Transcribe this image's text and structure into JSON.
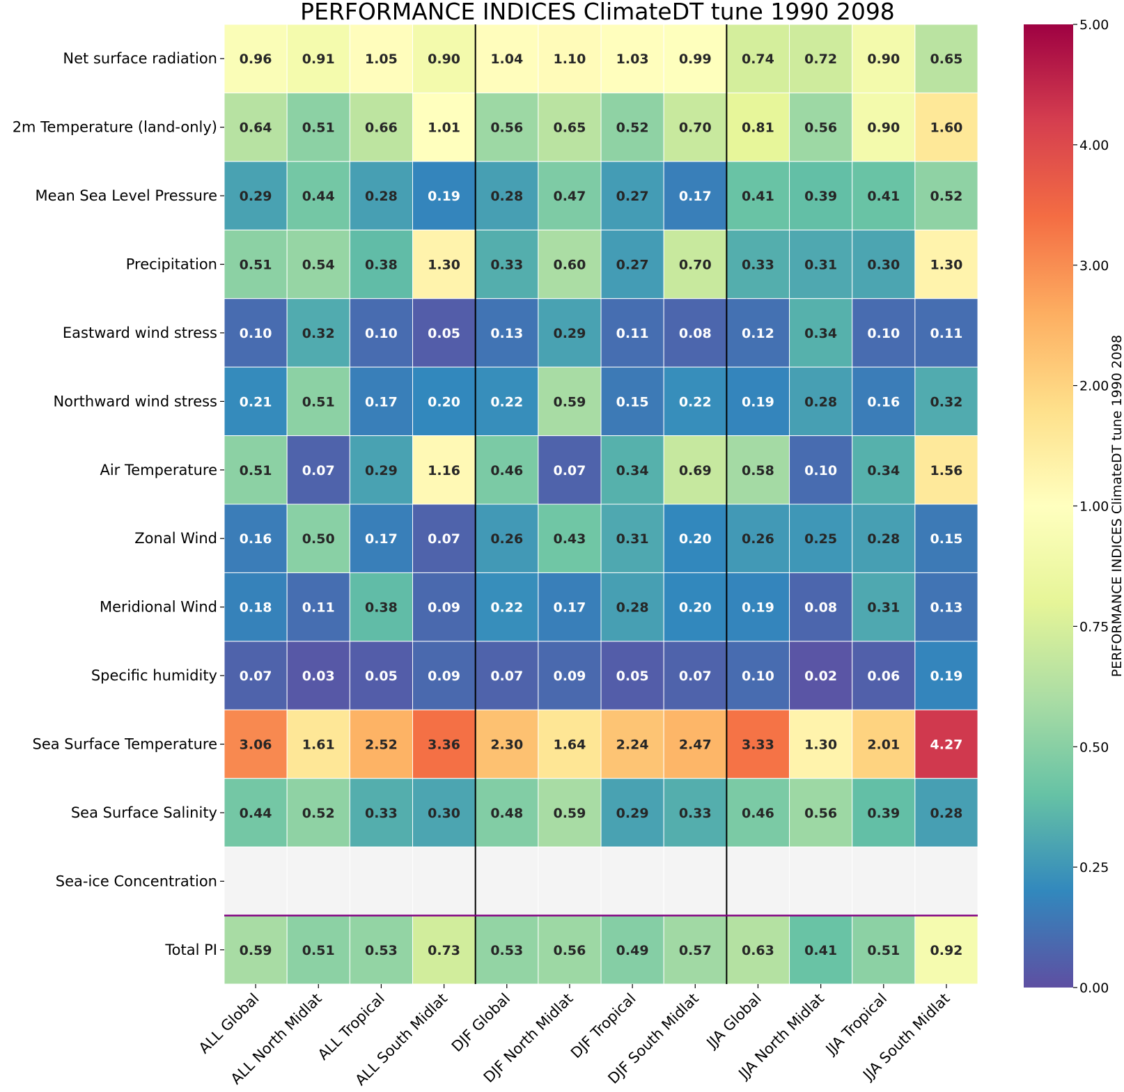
{
  "chart_data": {
    "type": "heatmap",
    "title": "PERFORMANCE INDICES ClimateDT tune 1990 2098",
    "rows": [
      "Net surface radiation",
      "2m Temperature (land-only)",
      "Mean Sea Level Pressure",
      "Precipitation",
      "Eastward wind stress",
      "Northward wind stress",
      "Air Temperature",
      "Zonal Wind",
      "Meridional Wind",
      "Specific humidity",
      "Sea Surface Temperature",
      "Sea Surface Salinity",
      "Sea-ice Concentration",
      "Total PI"
    ],
    "columns": [
      "ALL Global",
      "ALL North Midlat",
      "ALL Tropical",
      "ALL South Midlat",
      "DJF Global",
      "DJF North Midlat",
      "DJF Tropical",
      "DJF South Midlat",
      "JJA Global",
      "JJA North Midlat",
      "JJA Tropical",
      "JJA South Midlat"
    ],
    "values": [
      [
        "0.96",
        "0.91",
        "1.05",
        "0.90",
        "1.04",
        "1.10",
        "1.03",
        "0.99",
        "0.74",
        "0.72",
        "0.90",
        "0.65"
      ],
      [
        "0.64",
        "0.51",
        "0.66",
        "1.01",
        "0.56",
        "0.65",
        "0.52",
        "0.70",
        "0.81",
        "0.56",
        "0.90",
        "1.60"
      ],
      [
        "0.29",
        "0.44",
        "0.28",
        "0.19",
        "0.28",
        "0.47",
        "0.27",
        "0.17",
        "0.41",
        "0.39",
        "0.41",
        "0.52"
      ],
      [
        "0.51",
        "0.54",
        "0.38",
        "1.30",
        "0.33",
        "0.60",
        "0.27",
        "0.70",
        "0.33",
        "0.31",
        "0.30",
        "1.30"
      ],
      [
        "0.10",
        "0.32",
        "0.10",
        "0.05",
        "0.13",
        "0.29",
        "0.11",
        "0.08",
        "0.12",
        "0.34",
        "0.10",
        "0.11"
      ],
      [
        "0.21",
        "0.51",
        "0.17",
        "0.20",
        "0.22",
        "0.59",
        "0.15",
        "0.22",
        "0.19",
        "0.28",
        "0.16",
        "0.32"
      ],
      [
        "0.51",
        "0.07",
        "0.29",
        "1.16",
        "0.46",
        "0.07",
        "0.34",
        "0.69",
        "0.58",
        "0.10",
        "0.34",
        "1.56"
      ],
      [
        "0.16",
        "0.50",
        "0.17",
        "0.07",
        "0.26",
        "0.43",
        "0.31",
        "0.20",
        "0.26",
        "0.25",
        "0.28",
        "0.15"
      ],
      [
        "0.18",
        "0.11",
        "0.38",
        "0.09",
        "0.22",
        "0.17",
        "0.28",
        "0.20",
        "0.19",
        "0.08",
        "0.31",
        "0.13"
      ],
      [
        "0.07",
        "0.03",
        "0.05",
        "0.09",
        "0.07",
        "0.09",
        "0.05",
        "0.07",
        "0.10",
        "0.02",
        "0.06",
        "0.19"
      ],
      [
        "3.06",
        "1.61",
        "2.52",
        "3.36",
        "2.30",
        "1.64",
        "2.24",
        "2.47",
        "3.33",
        "1.30",
        "2.01",
        "4.27"
      ],
      [
        "0.44",
        "0.52",
        "0.33",
        "0.30",
        "0.48",
        "0.59",
        "0.29",
        "0.33",
        "0.46",
        "0.56",
        "0.39",
        "0.28"
      ],
      [
        null,
        null,
        null,
        null,
        null,
        null,
        null,
        null,
        null,
        null,
        null,
        null
      ],
      [
        "0.59",
        "0.51",
        "0.53",
        "0.73",
        "0.53",
        "0.56",
        "0.49",
        "0.57",
        "0.63",
        "0.41",
        "0.51",
        "0.92"
      ]
    ],
    "colorbar": {
      "label": "PERFORMANCE INDICES ClimateDT tune 1990 2098",
      "ticks": [
        "0.00",
        "0.25",
        "0.50",
        "0.75",
        "1.00",
        "2.00",
        "3.00",
        "4.00",
        "5.00"
      ],
      "colormap": "Spectral_r",
      "range": [
        0,
        5
      ]
    },
    "missing_color": "#f4f4f4",
    "separator_color": "#000000",
    "total_separator_color": "#800080"
  }
}
